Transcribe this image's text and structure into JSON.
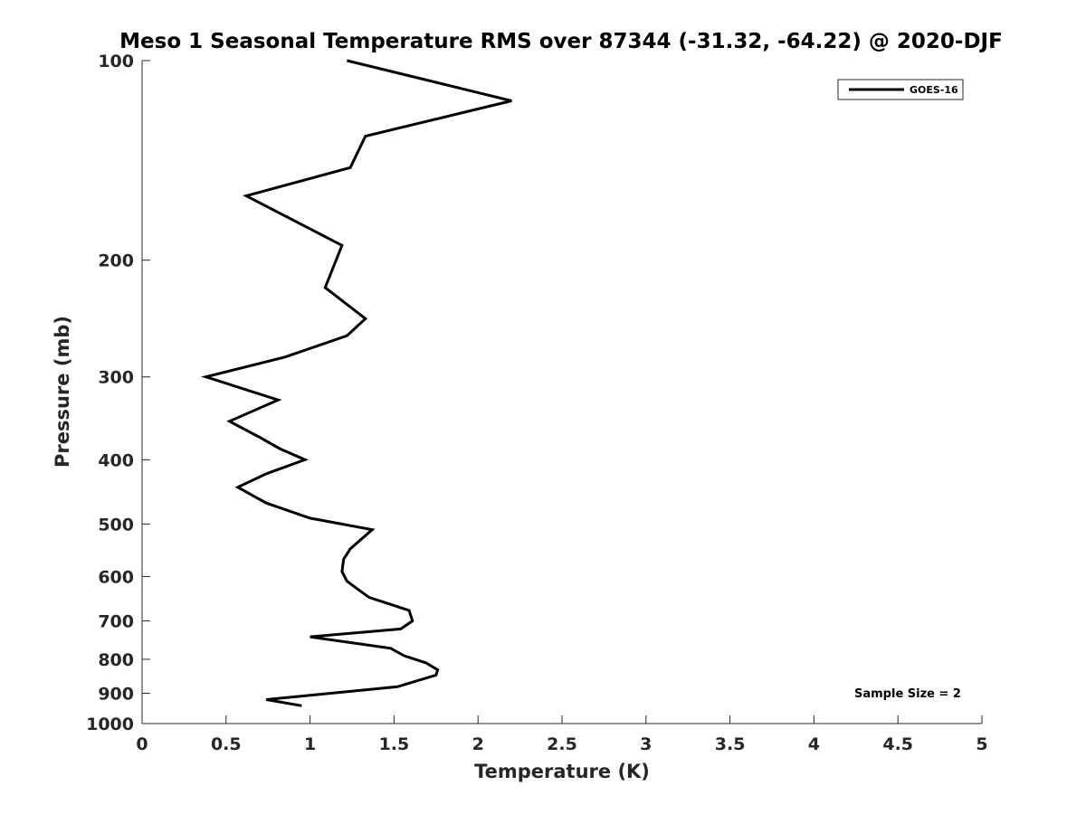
{
  "chart_data": {
    "type": "line",
    "title": "Meso 1 Seasonal Temperature RMS over 87344 (-31.32, -64.22) @ 2020-DJF",
    "xlabel": "Temperature (K)",
    "ylabel": "Pressure (mb)",
    "xlim": [
      0,
      5
    ],
    "ylim": [
      100,
      1000
    ],
    "y_scale": "log",
    "y_reversed": true,
    "x_ticks": [
      "0",
      "0.5",
      "1",
      "1.5",
      "2",
      "2.5",
      "3",
      "3.5",
      "4",
      "4.5",
      "5"
    ],
    "y_ticks": [
      "100",
      "200",
      "300",
      "400",
      "500",
      "600",
      "700",
      "800",
      "900",
      "1000"
    ],
    "grid": false,
    "legend_position": "top-right",
    "annotation": "Sample Size = 2",
    "series_color": "#000000",
    "series": [
      {
        "name": "GOES-16",
        "x": [
          1.22,
          2.2,
          1.33,
          1.24,
          0.62,
          1.19,
          1.09,
          1.33,
          1.22,
          0.85,
          0.38,
          0.81,
          0.52,
          0.7,
          0.82,
          0.97,
          0.74,
          0.57,
          0.74,
          1.0,
          1.37,
          1.24,
          1.2,
          1.19,
          1.22,
          1.35,
          1.59,
          1.61,
          1.54,
          1.0,
          1.48,
          1.56,
          1.69,
          1.76,
          1.75,
          1.52,
          0.74,
          0.95
        ],
        "y": [
          100,
          115,
          130,
          145,
          160,
          190,
          220,
          245,
          260,
          280,
          300,
          325,
          350,
          370,
          385,
          400,
          420,
          440,
          465,
          490,
          510,
          545,
          565,
          590,
          610,
          645,
          675,
          700,
          720,
          740,
          770,
          790,
          810,
          830,
          845,
          880,
          920,
          940
        ]
      }
    ]
  }
}
